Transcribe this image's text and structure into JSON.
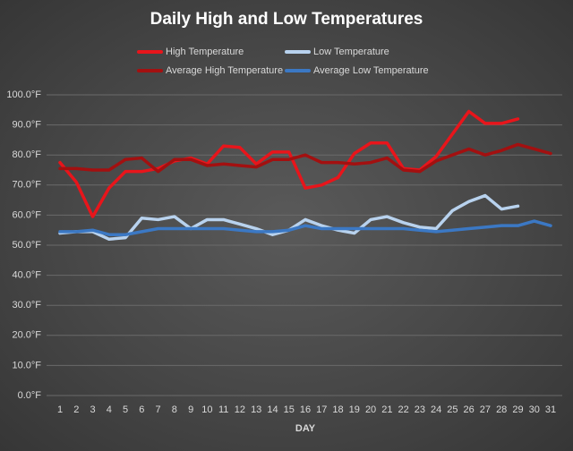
{
  "chart_data": {
    "type": "line",
    "title": "Daily High and Low Temperatures",
    "x_label": "DAY",
    "categories": [
      "1",
      "2",
      "3",
      "4",
      "5",
      "6",
      "7",
      "8",
      "9",
      "10",
      "11",
      "12",
      "13",
      "14",
      "15",
      "16",
      "17",
      "18",
      "19",
      "20",
      "21",
      "22",
      "23",
      "24",
      "25",
      "26",
      "27",
      "28",
      "29",
      "30",
      "31"
    ],
    "series": [
      {
        "name": "High Temperature",
        "color": "#e8151b",
        "values": [
          77.5,
          71,
          59.5,
          69,
          74.5,
          74.5,
          75.5,
          78,
          79,
          77,
          83,
          82.5,
          77,
          81,
          81,
          69,
          70,
          72.5,
          80.5,
          84,
          84,
          75.5,
          75,
          79.5,
          87,
          94.5,
          90.5,
          90.5,
          92,
          null,
          null
        ]
      },
      {
        "name": "Low Temperature",
        "color": "#b8d2ee",
        "values": [
          54,
          54.5,
          54.5,
          52,
          52.5,
          59,
          58.5,
          59.5,
          55.5,
          58.5,
          58.5,
          57,
          55.5,
          53.5,
          55,
          58.5,
          56.5,
          55,
          54,
          58.5,
          59.5,
          57.5,
          56,
          55.5,
          61.5,
          64.5,
          66.5,
          62,
          63,
          null,
          null
        ]
      },
      {
        "name": "Average High Temperature",
        "color": "#a31010",
        "values": [
          75.5,
          75.5,
          75,
          75,
          78.5,
          79,
          74.5,
          78.5,
          78.5,
          76.5,
          77,
          76.5,
          76,
          78.5,
          78.5,
          80,
          77.5,
          77.5,
          77,
          77.5,
          79,
          75,
          74.5,
          78,
          80,
          82,
          80,
          81.5,
          83.5,
          82,
          80.5
        ]
      },
      {
        "name": "Average Low Temperature",
        "color": "#3b78c4",
        "values": [
          54.5,
          54.5,
          55,
          53.5,
          53.5,
          54.5,
          55.5,
          55.5,
          55.5,
          55.5,
          55.5,
          55,
          54.5,
          54.5,
          55,
          56.5,
          55.5,
          55.5,
          55.5,
          55.5,
          55.5,
          55.5,
          55,
          54.5,
          55,
          55.5,
          56,
          56.5,
          56.5,
          58,
          56.5
        ]
      }
    ],
    "ylim": [
      0,
      100
    ],
    "yticks": [
      {
        "value": 0,
        "label": "0.0°F"
      },
      {
        "value": 10,
        "label": "10.0°F"
      },
      {
        "value": 20,
        "label": "20.0°F"
      },
      {
        "value": 30,
        "label": "30.0°F"
      },
      {
        "value": 40,
        "label": "40.0°F"
      },
      {
        "value": 50,
        "label": "50.0°F"
      },
      {
        "value": 60,
        "label": "60.0°F"
      },
      {
        "value": 70,
        "label": "70.0°F"
      },
      {
        "value": 80,
        "label": "80.0°F"
      },
      {
        "value": 90,
        "label": "90.0°F"
      },
      {
        "value": 100,
        "label": "100.0°F"
      }
    ],
    "grid": true,
    "legend": "top"
  }
}
